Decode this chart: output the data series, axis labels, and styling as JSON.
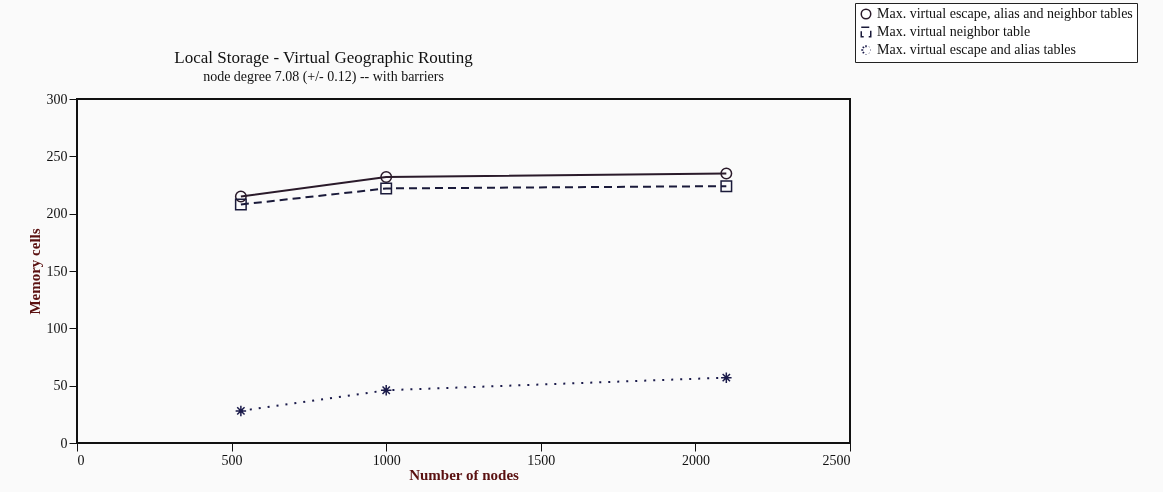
{
  "chart_data": {
    "type": "line",
    "title": "Local Storage - Virtual Geographic Routing",
    "subtitle": "node degree 7.08 (+/- 0.12) -- with barriers",
    "xlabel": "Number of nodes",
    "ylabel": "Memory cells",
    "x": [
      530,
      1000,
      2100
    ],
    "series": [
      {
        "name": "Max. virtual escape, alias and neighbor tables",
        "color": "#2a1a2a",
        "values": [
          215,
          232,
          235
        ],
        "marker": "circle",
        "line_style": "solid"
      },
      {
        "name": "Max. virtual neighbor table",
        "color": "#1a1a3a",
        "values": [
          208,
          222,
          224
        ],
        "marker": "square",
        "line_style": "dashed"
      },
      {
        "name": "Max. virtual escape and alias tables",
        "color": "#1a1a4a",
        "values": [
          28,
          46,
          57
        ],
        "marker": "cross",
        "line_style": "dotted"
      }
    ],
    "xlim": [
      0,
      2500
    ],
    "xticks": [
      0,
      500,
      1000,
      1500,
      2000,
      2500
    ],
    "ylim": [
      0,
      300
    ],
    "yticks": [
      0,
      50,
      100,
      150,
      200,
      250,
      300
    ],
    "grid": false,
    "legend": "top right"
  }
}
